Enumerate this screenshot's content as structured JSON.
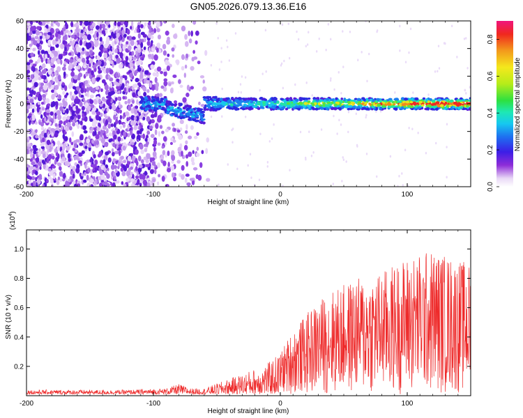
{
  "title": "GN05.2026.079.13.36.E16",
  "chart_data": [
    {
      "type": "heatmap",
      "xlabel": "Height of straight line (km)",
      "ylabel": "Frequency (Hz)",
      "xlim": [
        -200,
        150
      ],
      "ylim": [
        -60,
        60
      ],
      "x_ticks": [
        "-200",
        "-100",
        "0",
        "100"
      ],
      "y_ticks": [
        "60",
        "40",
        "20",
        "0",
        "-20",
        "-40",
        "-60"
      ],
      "colorbar": {
        "label": "Normalized spectral amplitude",
        "range": [
          0,
          0.9
        ],
        "ticks": [
          "0.0",
          "0.2",
          "0.4",
          "0.6",
          "0.8"
        ]
      }
    },
    {
      "type": "line",
      "xlabel": "Height of straight line (km)",
      "ylabel": "SNR (10 * v/v)",
      "scale_label": "(x10",
      "scale_exponent": "4",
      "xlim": [
        -200,
        150
      ],
      "ylim": [
        0,
        1.13
      ],
      "x_ticks": [
        "-200",
        "-100",
        "0",
        "100"
      ],
      "y_ticks": [
        "0.2",
        "0.4",
        "0.6",
        "0.8",
        "1.0"
      ],
      "color": "#ee2a2a",
      "envelope": {
        "x": [
          -200,
          -120,
          -90,
          -80,
          -70,
          -60,
          -45,
          -30,
          -10,
          0,
          10,
          20,
          30,
          40,
          60,
          80,
          100,
          120,
          150
        ],
        "lo": [
          0.01,
          0.01,
          0.01,
          0.01,
          0.01,
          0.01,
          0.01,
          0.01,
          0.01,
          0.01,
          0.01,
          0.01,
          0.01,
          0.01,
          0.01,
          0.01,
          0.01,
          0.01,
          0.01
        ],
        "hi": [
          0.04,
          0.04,
          0.05,
          0.08,
          0.05,
          0.05,
          0.1,
          0.15,
          0.22,
          0.3,
          0.45,
          0.55,
          0.65,
          0.72,
          0.8,
          0.85,
          0.95,
          1.0,
          0.9
        ]
      }
    }
  ]
}
